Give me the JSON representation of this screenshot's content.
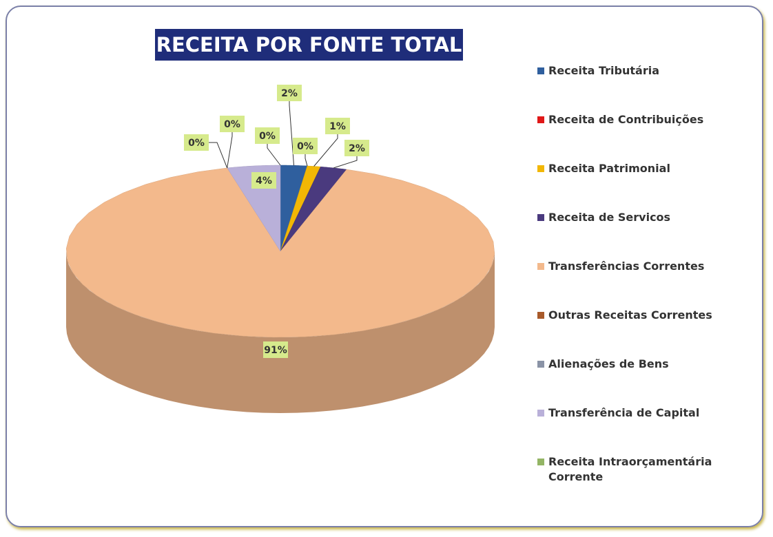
{
  "chart_data": {
    "type": "pie",
    "title": "RECEITA POR FONTE TOTAL",
    "categories": [
      "Receita Tributária",
      "Receita de Contribuições",
      "Receita Patrimonial",
      "Receita de Servicos",
      "Transferências Correntes",
      "Outras Receitas Correntes",
      "Alienações de Bens",
      "Transferência de Capital",
      "Receita Intraorçamentária Corrente"
    ],
    "values": [
      2,
      0,
      1,
      2,
      91,
      0,
      0,
      4,
      0
    ],
    "value_labels": [
      "2%",
      "0%",
      "1%",
      "2%",
      "91%",
      "0%",
      "0%",
      "4%",
      "0%"
    ],
    "colors": [
      "#2f5f9e",
      "#e01818",
      "#f2b705",
      "#4a3a7e",
      "#f3b98c",
      "#a85a2a",
      "#8a93a6",
      "#b9b0d9",
      "#93b565"
    ],
    "legend": "right"
  }
}
